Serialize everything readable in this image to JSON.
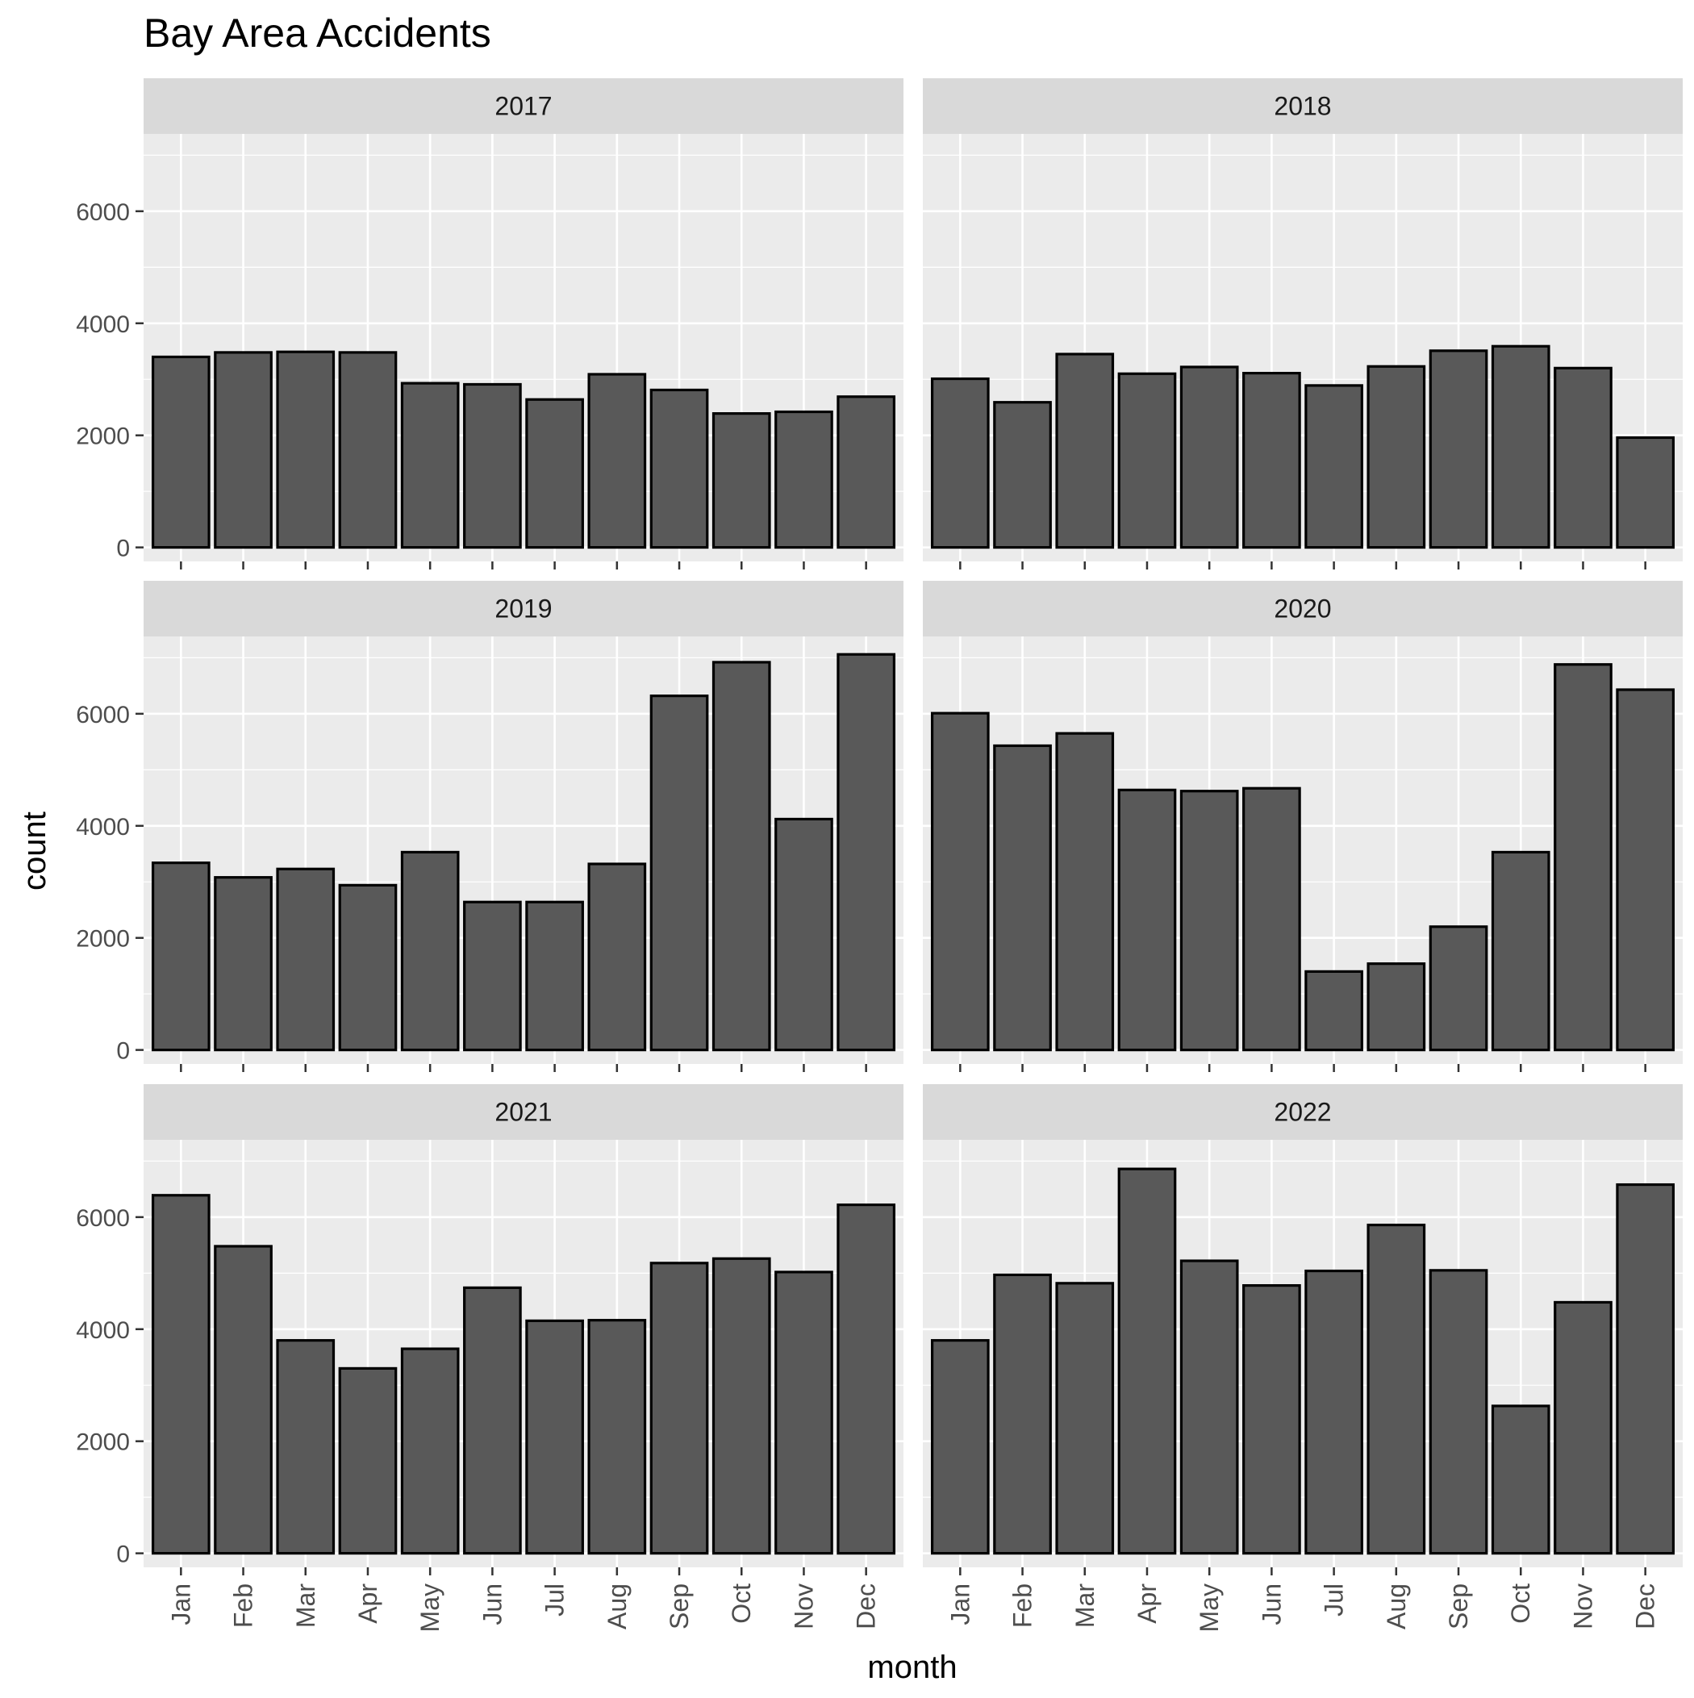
{
  "chart_data": {
    "type": "bar",
    "title": "Bay Area Accidents",
    "xlabel": "month",
    "ylabel": "count",
    "ylim": [
      0,
      7000
    ],
    "yticks": [
      0,
      2000,
      4000,
      6000
    ],
    "ytick_labels": [
      "0",
      "2000",
      "4000",
      "6000"
    ],
    "categories": [
      "Jan",
      "Feb",
      "Mar",
      "Apr",
      "May",
      "Jun",
      "Jul",
      "Aug",
      "Sep",
      "Oct",
      "Nov",
      "Dec"
    ],
    "facet_layout": "3 rows x 2 columns",
    "grid": true,
    "colors": {
      "panel_bg": "#ebebeb",
      "strip_bg": "#d9d9d9",
      "grid": "#ffffff",
      "bar_fill": "#595959",
      "bar_stroke": "#000000",
      "tick_text": "#4d4d4d",
      "text": "#000000"
    },
    "panels": [
      {
        "label": "2017",
        "values": [
          3400,
          3480,
          3490,
          3480,
          2930,
          2910,
          2640,
          3090,
          2810,
          2390,
          2420,
          2690
        ]
      },
      {
        "label": "2018",
        "values": [
          3010,
          2590,
          3450,
          3100,
          3220,
          3110,
          2890,
          3230,
          3510,
          3590,
          3200,
          1960
        ]
      },
      {
        "label": "2019",
        "values": [
          3340,
          3080,
          3230,
          2940,
          3530,
          2640,
          2640,
          3320,
          6320,
          6920,
          4120,
          7060
        ]
      },
      {
        "label": "2020",
        "values": [
          6010,
          5430,
          5650,
          4640,
          4620,
          4670,
          1400,
          1540,
          2200,
          3530,
          6880,
          6430
        ]
      },
      {
        "label": "2021",
        "values": [
          6390,
          5480,
          3800,
          3300,
          3650,
          4740,
          4150,
          4160,
          5180,
          5260,
          5020,
          6220
        ]
      },
      {
        "label": "2022",
        "values": [
          3800,
          4970,
          4820,
          6860,
          5220,
          4780,
          5040,
          5860,
          5050,
          2630,
          4480,
          6580
        ]
      }
    ]
  }
}
